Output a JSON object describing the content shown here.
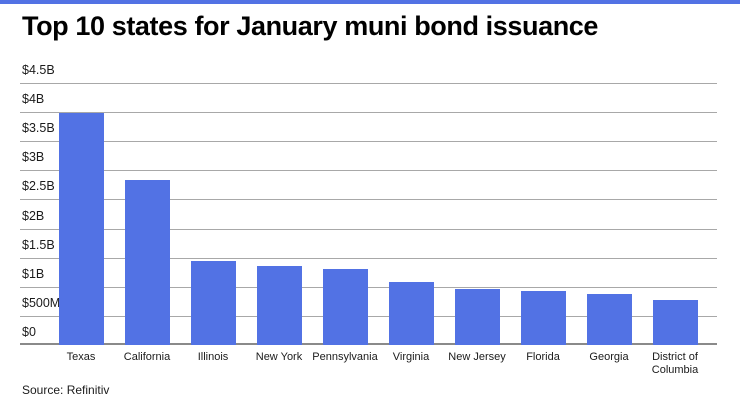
{
  "theme": {
    "accent": "#5272E4",
    "gridline_color": "#A8A8A8",
    "axis_line_color": "#8A8A8A",
    "text_color": "#1B1B1B",
    "background": "#FFFFFF"
  },
  "header": {
    "title": "Top 10 states for January muni bond issuance"
  },
  "footer": {
    "source": "Source: Refinitiv"
  },
  "chart_data": {
    "type": "bar",
    "title": "Top 10 states for January muni bond issuance",
    "categories": [
      "Texas",
      "California",
      "Illinois",
      "New York",
      "Pennsylvania",
      "Virginia",
      "New Jersey",
      "Florida",
      "Georgia",
      "District of Columbia"
    ],
    "values": [
      3.99,
      2.83,
      1.44,
      1.36,
      1.31,
      1.09,
      0.97,
      0.93,
      0.87,
      0.77
    ],
    "values_unit": "USD billions",
    "y_ticks": [
      "$4.5B",
      "$4B",
      "$3.5B",
      "$3B",
      "$2.5B",
      "$2B",
      "$1.5B",
      "$1B",
      "$500M",
      "$0"
    ],
    "ylim": [
      0,
      4.5
    ],
    "grid": true,
    "legend": "none",
    "bar_color": "#5272E4",
    "source": "Source: Refinitiv"
  }
}
